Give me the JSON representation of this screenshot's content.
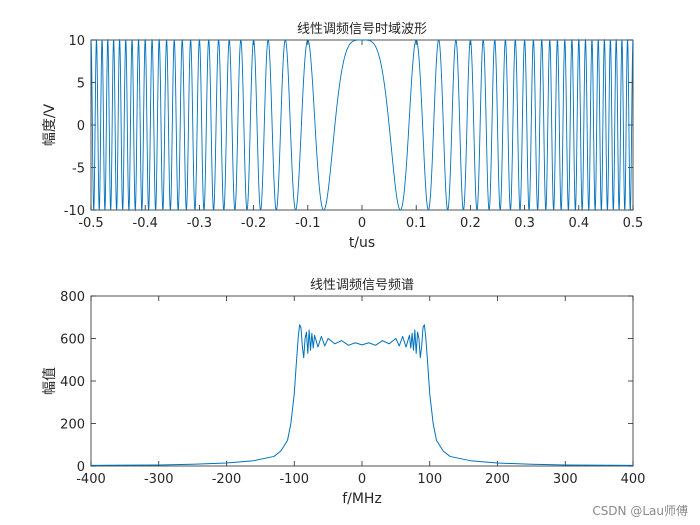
{
  "chart_data": [
    {
      "type": "line",
      "title": "线性调频信号时域波形",
      "xlabel": "t/us",
      "ylabel": "幅度/V",
      "xlim": [
        -0.5,
        0.5
      ],
      "ylim": [
        -10,
        10
      ],
      "xticks": [
        -0.5,
        -0.4,
        -0.3,
        -0.2,
        -0.1,
        0,
        0.1,
        0.2,
        0.3,
        0.4,
        0.5
      ],
      "xtick_labels": [
        "-0.5",
        "-0.4",
        "-0.3",
        "-0.2",
        "-0.1",
        "0",
        "0.1",
        "0.2",
        "0.3",
        "0.4",
        "0.5"
      ],
      "yticks": [
        -10,
        -5,
        0,
        5,
        10
      ],
      "ytick_labels": [
        "-10",
        "-5",
        "0",
        "5",
        "10"
      ],
      "grid": false,
      "color": "#0072BD",
      "series": [
        {
          "function": "10*cos(pi*K*t^2)",
          "amplitude": 10,
          "chirp_rate_per_us2": 200
        }
      ]
    },
    {
      "type": "line",
      "title": "线性调频信号频谱",
      "xlabel": "f/MHz",
      "ylabel": "幅值",
      "xlim": [
        -400,
        400
      ],
      "ylim": [
        0,
        800
      ],
      "xticks": [
        -400,
        -300,
        -200,
        -100,
        0,
        100,
        200,
        300,
        400
      ],
      "xtick_labels": [
        "-400",
        "-300",
        "-200",
        "-100",
        "0",
        "100",
        "200",
        "300",
        "400"
      ],
      "yticks": [
        0,
        200,
        400,
        600,
        800
      ],
      "ytick_labels": [
        "0",
        "200",
        "400",
        "600",
        "800"
      ],
      "grid": false,
      "color": "#0072BD",
      "series": [
        {
          "x": [
            -400,
            -300,
            -250,
            -200,
            -160,
            -130,
            -120,
            -110,
            -105,
            -100,
            -97,
            -94,
            -92,
            -90,
            -88,
            -86,
            -84,
            -82,
            -80,
            -78,
            -76,
            -74,
            -72,
            -70,
            -65,
            -60,
            -55,
            -50,
            -40,
            -30,
            -20,
            -10,
            0,
            10,
            20,
            30,
            40,
            50,
            55,
            60,
            65,
            70,
            72,
            74,
            76,
            78,
            80,
            82,
            84,
            86,
            88,
            90,
            92,
            94,
            97,
            100,
            105,
            110,
            120,
            130,
            160,
            200,
            250,
            300,
            400
          ],
          "values": [
            3,
            5,
            8,
            14,
            25,
            45,
            70,
            120,
            200,
            340,
            480,
            610,
            665,
            650,
            560,
            510,
            600,
            630,
            530,
            640,
            545,
            625,
            555,
            615,
            560,
            610,
            565,
            600,
            575,
            590,
            568,
            580,
            570,
            580,
            568,
            590,
            575,
            600,
            565,
            610,
            560,
            615,
            555,
            625,
            545,
            640,
            530,
            630,
            600,
            510,
            560,
            650,
            665,
            610,
            480,
            340,
            200,
            120,
            70,
            45,
            25,
            14,
            8,
            5,
            3
          ]
        }
      ]
    }
  ],
  "watermark": "CSDN @Lau师傅"
}
